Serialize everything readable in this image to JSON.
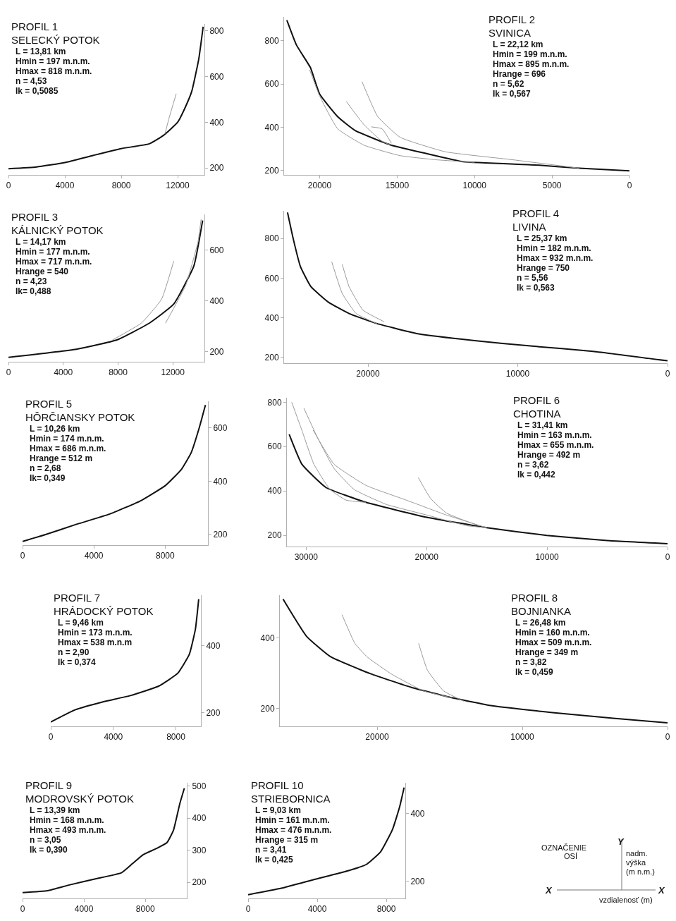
{
  "chart_data": [
    {
      "type": "line",
      "title": "PROFIL 1",
      "subtitle": "SELECKÝ POTOK",
      "annotations": [
        "L = 13,81 km",
        "Hmin = 197 m.n.m.",
        "Hmax = 818 m.n.m.",
        "n = 4,53",
        "Ik = 0,5085"
      ],
      "xlim": [
        0,
        13900
      ],
      "xticks": [
        0,
        4000,
        8000,
        12000
      ],
      "ylim": [
        170,
        830
      ],
      "yticks": [
        200,
        400,
        600,
        800
      ],
      "series": [
        {
          "color": "#111111",
          "x": [
            0,
            2000,
            4000,
            6000,
            8000,
            10000,
            11000,
            12000,
            12500,
            13000,
            13500,
            13810
          ],
          "values": [
            197,
            205,
            224,
            255,
            285,
            306,
            343,
            400,
            460,
            535,
            677,
            818
          ]
        },
        {
          "color": "#9a9a9a",
          "x": [
            11100,
            11400,
            11900
          ],
          "values": [
            350,
            420,
            525
          ]
        }
      ]
    },
    {
      "type": "line",
      "title": "PROFIL 2",
      "subtitle": "SVINICA",
      "annotations": [
        "L = 22,12 km",
        "Hmin = 199 m.n.m.",
        "Hmax = 895 m.n.m.",
        "Hrange = 696",
        "n = 5,62",
        "Ik = 0,567"
      ],
      "xlim": [
        22300,
        0
      ],
      "xticks": [
        20000,
        15000,
        10000,
        5000,
        0
      ],
      "ylim": [
        180,
        910
      ],
      "yticks": [
        200,
        400,
        600,
        800
      ],
      "series": [
        {
          "color": "#111111",
          "x": [
            22120,
            21500,
            20600,
            20000,
            18840,
            17690,
            15370,
            13060,
            10740,
            6110,
            3240,
            0
          ],
          "values": [
            895,
            780,
            676,
            553,
            449,
            384,
            317,
            278,
            241,
            226,
            211,
            199
          ]
        },
        {
          "color": "#9a9a9a",
          "x": [
            20650,
            20000,
            18840,
            17130,
            14810,
            12500,
            10000
          ],
          "values": [
            666,
            544,
            393,
            317,
            269,
            250,
            238
          ]
        },
        {
          "color": "#9a9a9a",
          "x": [
            18290,
            17130,
            15970,
            15370
          ],
          "values": [
            520,
            411,
            335,
            317
          ]
        },
        {
          "color": "#9a9a9a",
          "x": [
            17270,
            16250,
            14810,
            11900,
            7550,
            3240
          ],
          "values": [
            611,
            449,
            354,
            287,
            250,
            211
          ]
        },
        {
          "color": "#9a9a9a",
          "x": [
            16670,
            15970,
            15370
          ],
          "values": [
            402,
            393,
            326
          ]
        }
      ]
    },
    {
      "type": "line",
      "title": "PROFIL 3",
      "subtitle": "KÁLNICKÝ POTOK",
      "annotations": [
        "L = 14,17 km",
        "Hmin = 177 m.n.m.",
        "Hmax = 717 m.n.m.",
        "Hrange = 540",
        "n = 4,23",
        "Ik= 0,488"
      ],
      "xlim": [
        0,
        14300
      ],
      "xticks": [
        0,
        4000,
        8000,
        12000
      ],
      "ylim": [
        160,
        740
      ],
      "yticks": [
        200,
        400,
        600
      ],
      "series": [
        {
          "color": "#111111",
          "x": [
            0,
            4950,
            7910,
            10280,
            12060,
            13530,
            14170
          ],
          "values": [
            177,
            209,
            246,
            312,
            387,
            537,
            716
          ]
        },
        {
          "color": "#9a9a9a",
          "x": [
            7590,
            9690,
            11170,
            12060
          ],
          "values": [
            246,
            312,
            406,
            556
          ]
        },
        {
          "color": "#9a9a9a",
          "x": [
            11460,
            12940,
            13830,
            14060
          ],
          "values": [
            312,
            462,
            632,
            721
          ]
        }
      ]
    },
    {
      "type": "line",
      "title": "PROFIL 4",
      "subtitle": "LIVINA",
      "annotations": [
        "L = 25,37 km",
        "Hmin = 182 m.n.m.",
        "Hmax = 932 m.n.m.",
        "Hrange = 750",
        "n = 5,56",
        "Ik = 0,563"
      ],
      "xlim": [
        25600,
        0
      ],
      "xticks": [
        20000,
        10000,
        0
      ],
      "ylim": [
        170,
        940
      ],
      "yticks": [
        200,
        400,
        600,
        800
      ],
      "series": [
        {
          "color": "#111111",
          "x": [
            25370,
            24980,
            24510,
            23810,
            22650,
            21260,
            19400,
            16600,
            12880,
            9160,
            4980,
            0
          ],
          "values": [
            932,
            796,
            659,
            557,
            479,
            421,
            370,
            318,
            284,
            257,
            230,
            182
          ]
        },
        {
          "color": "#9a9a9a",
          "x": [
            22420,
            21720,
            20790,
            19400
          ],
          "values": [
            683,
            523,
            421,
            370
          ]
        },
        {
          "color": "#9a9a9a",
          "x": [
            21720,
            21260,
            20330,
            18930
          ],
          "values": [
            670,
            557,
            438,
            380
          ]
        }
      ]
    },
    {
      "type": "line",
      "title": "PROFIL 5",
      "subtitle": "HÔRČIANSKY POTOK",
      "annotations": [
        "L = 10,26 km",
        "Hmin = 174 m.n.m.",
        "Hmax = 686 m.n.m.",
        "Hrange = 512 m",
        "n = 2,68",
        "Ik= 0,349"
      ],
      "xlim": [
        0,
        10400
      ],
      "xticks": [
        0,
        4000,
        8000
      ],
      "ylim": [
        160,
        700
      ],
      "yticks": [
        200,
        400,
        600
      ],
      "series": [
        {
          "color": "#111111",
          "x": [
            0,
            1260,
            3060,
            4860,
            6670,
            8020,
            8920,
            9460,
            9910,
            10260
          ],
          "values": [
            174,
            199,
            239,
            276,
            328,
            384,
            445,
            507,
            600,
            686
          ]
        }
      ]
    },
    {
      "type": "line",
      "title": "PROFIL 6",
      "subtitle": "CHOTINA",
      "annotations": [
        "L = 31,41 km",
        "Hmin = 163 m.n.m.",
        "Hmax = 655 m.n.m.",
        "Hrange = 492 m",
        "n = 3,62",
        "Ik = 0,442"
      ],
      "xlim": [
        31600,
        0
      ],
      "xticks": [
        30000,
        20000,
        10000,
        0
      ],
      "ylim": [
        150,
        820
      ],
      "yticks": [
        200,
        400,
        600,
        800
      ],
      "series": [
        {
          "color": "#111111",
          "x": [
            31410,
            30360,
            28360,
            25040,
            20000,
            15020,
            10030,
            5010,
            0
          ],
          "values": [
            655,
            521,
            416,
            349,
            282,
            235,
            200,
            177,
            163
          ]
        },
        {
          "color": "#9a9a9a",
          "x": [
            31200,
            30360,
            29360,
            28020,
            26690,
            25040
          ],
          "values": [
            800,
            674,
            521,
            407,
            359,
            349
          ]
        },
        {
          "color": "#9a9a9a",
          "x": [
            30190,
            29020,
            27690,
            26020,
            23360,
            20000,
            16690,
            15020
          ],
          "values": [
            773,
            636,
            502,
            407,
            340,
            292,
            244,
            235
          ]
        },
        {
          "color": "#9a9a9a",
          "x": [
            29420,
            27690,
            25020,
            21690,
            18360,
            15020
          ],
          "values": [
            674,
            521,
            425,
            359,
            292,
            235
          ]
        },
        {
          "color": "#9a9a9a",
          "x": [
            20690,
            19690,
            18360,
            15690
          ],
          "values": [
            460,
            368,
            301,
            244
          ]
        }
      ]
    },
    {
      "type": "line",
      "title": "PROFIL 7",
      "subtitle": "HRÁDOCKÝ POTOK",
      "annotations": [
        "L = 9,46 km",
        "Hmin = 173 m.n.m.",
        "Hmax = 538 m.n.m",
        "n = 2,90",
        "Ik = 0,374"
      ],
      "xlim": [
        0,
        9600
      ],
      "xticks": [
        0,
        4000,
        8000
      ],
      "ylim": [
        160,
        550
      ],
      "yticks": [
        200,
        400
      ],
      "series": [
        {
          "color": "#111111",
          "x": [
            0,
            1550,
            3340,
            5130,
            6920,
            8120,
            8860,
            9250,
            9460
          ],
          "values": [
            173,
            209,
            233,
            252,
            280,
            318,
            374,
            449,
            538
          ]
        }
      ]
    },
    {
      "type": "line",
      "title": "PROFIL 8",
      "subtitle": "BOJNIANKA",
      "annotations": [
        "L = 26,48 km",
        "Hmin = 160 m.n.m.",
        "Hmax = 509 m.n.m.",
        "Hrange = 349 m",
        "n = 3,82",
        "Ik = 0,459"
      ],
      "xlim": [
        26700,
        0
      ],
      "xticks": [
        20000,
        10000,
        0
      ],
      "ylim": [
        150,
        520
      ],
      "yticks": [
        200,
        400
      ],
      "series": [
        {
          "color": "#111111",
          "x": [
            26480,
            24860,
            23190,
            20420,
            17640,
            14860,
            12080,
            7920,
            3750,
            0
          ],
          "values": [
            509,
            404,
            346,
            298,
            260,
            231,
            208,
            189,
            173,
            160
          ]
        },
        {
          "color": "#9a9a9a",
          "x": [
            22420,
            21530,
            20690,
            19030,
            16810,
            14860
          ],
          "values": [
            465,
            384,
            346,
            298,
            250,
            231
          ]
        },
        {
          "color": "#9a9a9a",
          "x": [
            17140,
            16530,
            15420,
            14030
          ],
          "values": [
            384,
            308,
            250,
            221
          ]
        }
      ]
    },
    {
      "type": "line",
      "title": "PROFIL 9",
      "subtitle": "MODROVSKÝ POTOK",
      "annotations": [
        "L = 13,39 km",
        "Hmin = 168 m.n.m.",
        "Hmax = 493 m.n.m.",
        "n = 3,05",
        "Ik = 0,390"
      ],
      "xlim": [
        0,
        10700
      ],
      "xticks": [
        0,
        4000,
        8000
      ],
      "ylim": [
        150,
        510
      ],
      "yticks": [
        200,
        300,
        400,
        500
      ],
      "series": [
        {
          "color": "#111111",
          "x": [
            0,
            1640,
            3050,
            4750,
            6440,
            7150,
            7850,
            8700,
            9410,
            9830,
            10250,
            10540
          ],
          "values": [
            168,
            174,
            192,
            211,
            230,
            258,
            286,
            305,
            324,
            362,
            446,
            493
          ]
        }
      ]
    },
    {
      "type": "line",
      "title": "PROFIL 10",
      "subtitle": "STRIEBORNICA",
      "annotations": [
        "L = 9,03 km",
        "Hmin = 161 m.n.m.",
        "Hmax = 476 m.n.m.",
        "Hrange = 315 m",
        "n = 3,41",
        "Ik = 0,425"
      ],
      "xlim": [
        0,
        9100
      ],
      "xticks": [
        0,
        4000,
        8000
      ],
      "ylim": [
        150,
        490
      ],
      "yticks": [
        200,
        400
      ],
      "series": [
        {
          "color": "#111111",
          "x": [
            0,
            1920,
            3840,
            5750,
            6850,
            7670,
            8360,
            8770,
            9030
          ],
          "values": [
            161,
            180,
            206,
            231,
            250,
            287,
            353,
            419,
            476
          ]
        }
      ]
    },
    {
      "type": "other",
      "annotations": [
        "OZNAČENIE",
        "OSÍ",
        "Y",
        "nadm.",
        "výška",
        "(m n.m.)",
        "X",
        "X",
        "vzdialenosť (m)"
      ]
    }
  ]
}
